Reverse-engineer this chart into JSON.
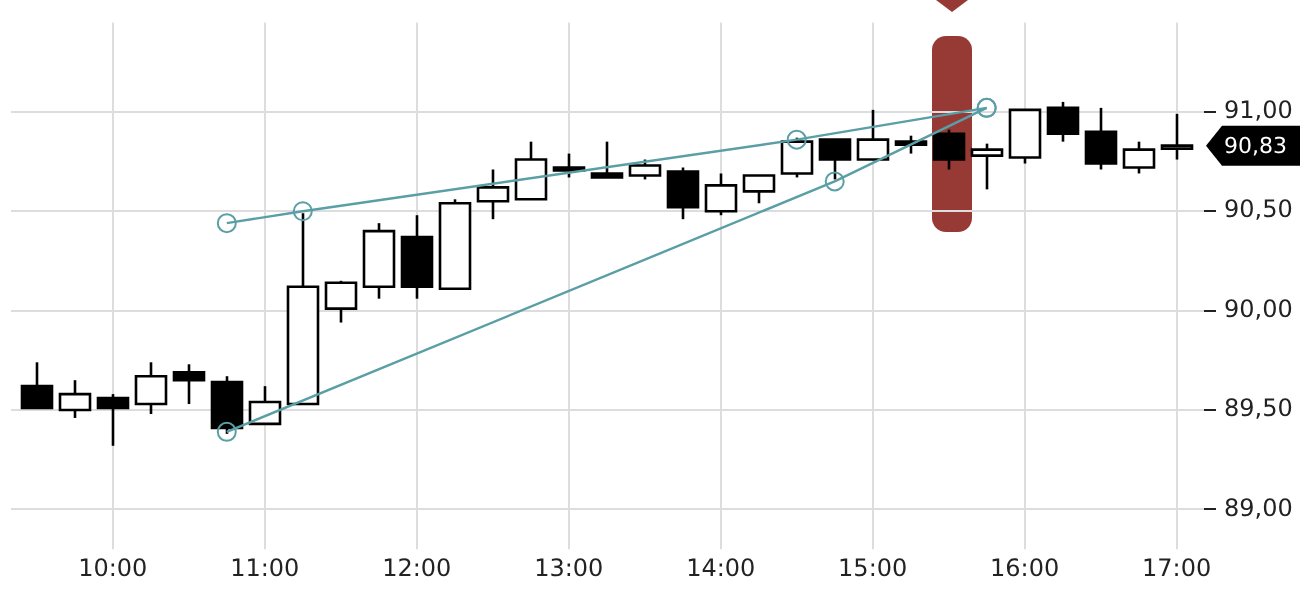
{
  "chart_data": {
    "type": "candlestick",
    "x": [
      9.5,
      9.75,
      10,
      10.25,
      10.5,
      10.75,
      11,
      11.25,
      11.5,
      11.75,
      12,
      12.25,
      12.5,
      12.75,
      13,
      13.25,
      13.5,
      13.75,
      14,
      14.25,
      14.5,
      14.75,
      15,
      15.25,
      15.5,
      15.75,
      16,
      16.25,
      16.5,
      16.75,
      17
    ],
    "ohlc": [
      [
        89.62,
        89.74,
        89.51,
        89.51
      ],
      [
        89.5,
        89.65,
        89.46,
        89.58
      ],
      [
        89.56,
        89.58,
        89.32,
        89.51
      ],
      [
        89.53,
        89.74,
        89.48,
        89.67
      ],
      [
        89.69,
        89.73,
        89.53,
        89.65
      ],
      [
        89.64,
        89.67,
        89.38,
        89.41
      ],
      [
        89.43,
        89.62,
        89.43,
        89.54
      ],
      [
        89.53,
        90.49,
        89.53,
        90.12
      ],
      [
        90.01,
        90.15,
        89.94,
        90.14
      ],
      [
        90.12,
        90.44,
        90.06,
        90.4
      ],
      [
        90.37,
        90.48,
        90.06,
        90.12
      ],
      [
        90.11,
        90.56,
        90.11,
        90.54
      ],
      [
        90.55,
        90.71,
        90.46,
        90.62
      ],
      [
        90.56,
        90.85,
        90.56,
        90.76
      ],
      [
        90.72,
        90.79,
        90.67,
        90.71
      ],
      [
        90.69,
        90.85,
        90.67,
        90.67
      ],
      [
        90.68,
        90.76,
        90.66,
        90.73
      ],
      [
        90.7,
        90.72,
        90.46,
        90.52
      ],
      [
        90.5,
        90.69,
        90.48,
        90.63
      ],
      [
        90.6,
        90.68,
        90.54,
        90.68
      ],
      [
        90.69,
        90.87,
        90.67,
        90.85
      ],
      [
        90.86,
        90.86,
        90.66,
        90.76
      ],
      [
        90.76,
        91.01,
        90.76,
        90.86
      ],
      [
        90.85,
        90.88,
        90.79,
        90.84
      ],
      [
        90.89,
        90.91,
        90.71,
        90.76
      ],
      [
        90.78,
        90.84,
        90.61,
        90.81
      ],
      [
        90.77,
        91.01,
        90.74,
        91.01
      ],
      [
        91.02,
        91.05,
        90.85,
        90.89
      ],
      [
        90.9,
        91.02,
        90.71,
        90.74
      ],
      [
        90.72,
        90.85,
        90.69,
        90.81
      ],
      [
        90.83,
        90.99,
        90.76,
        90.83
      ]
    ],
    "series": [
      {
        "type": "line",
        "x": [
          10.75,
          11.25,
          14.5,
          15.75
        ],
        "values": [
          90.44,
          90.5,
          90.86,
          91.02
        ],
        "color": "#5a9ea6"
      },
      {
        "type": "line",
        "x": [
          10.75,
          14.75,
          15.75
        ],
        "values": [
          89.39,
          90.65,
          91.02
        ],
        "color": "#5a9ea6"
      }
    ],
    "xlim": [
      9.33,
      17.18
    ],
    "ylim": [
      88.85,
      91.45
    ],
    "xticks": [
      {
        "value": 10,
        "label": "10:00"
      },
      {
        "value": 11,
        "label": "11:00"
      },
      {
        "value": 12,
        "label": "12:00"
      },
      {
        "value": 13,
        "label": "13:00"
      },
      {
        "value": 14,
        "label": "14:00"
      },
      {
        "value": 15,
        "label": "15:00"
      },
      {
        "value": 16,
        "label": "16:00"
      },
      {
        "value": 17,
        "label": "17:00"
      }
    ],
    "yticks": [
      {
        "value": 89,
        "label": "89,00"
      },
      {
        "value": 89.5,
        "label": "89,50"
      },
      {
        "value": 90,
        "label": "90,00"
      },
      {
        "value": 90.5,
        "label": "90,50"
      },
      {
        "value": 91,
        "label": "91,00"
      }
    ],
    "grid": true,
    "marker": "circle",
    "annotations": [
      "90,83"
    ]
  }
}
